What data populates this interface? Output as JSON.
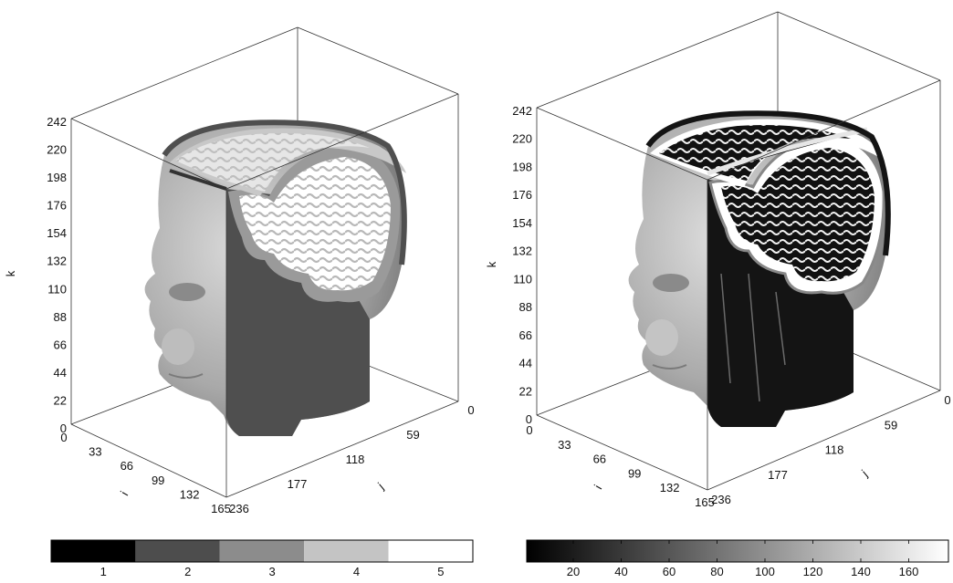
{
  "panels": [
    {
      "id": "left",
      "k_ticks": [
        "242",
        "220",
        "198",
        "176",
        "154",
        "132",
        "110",
        "88",
        "66",
        "44",
        "22",
        "0"
      ],
      "i_ticks": [
        "0",
        "33",
        "66",
        "99",
        "132",
        "165"
      ],
      "j_ticks": [
        "0",
        "59",
        "118",
        "177",
        "236"
      ],
      "k_label": "k",
      "i_label": "i",
      "j_label": "j",
      "shading": "discrete-segmented",
      "colorbar": {
        "type": "discrete",
        "labels": [
          "1",
          "2",
          "3",
          "4",
          "5"
        ],
        "colors": [
          "#000000",
          "#4d4d4d",
          "#8c8c8c",
          "#c4c4c4",
          "#ffffff"
        ]
      }
    },
    {
      "id": "right",
      "k_ticks": [
        "242",
        "220",
        "198",
        "176",
        "154",
        "132",
        "110",
        "88",
        "66",
        "44",
        "22",
        "0"
      ],
      "i_ticks": [
        "0",
        "33",
        "66",
        "99",
        "132",
        "165"
      ],
      "j_ticks": [
        "0",
        "59",
        "118",
        "177",
        "236"
      ],
      "k_label": "k",
      "i_label": "i",
      "j_label": "j",
      "shading": "continuous-intensity",
      "colorbar": {
        "type": "continuous",
        "labels": [
          "20",
          "40",
          "60",
          "80",
          "100",
          "120",
          "140",
          "160"
        ],
        "colors": [
          "#000000",
          "#ffffff"
        ]
      }
    }
  ]
}
